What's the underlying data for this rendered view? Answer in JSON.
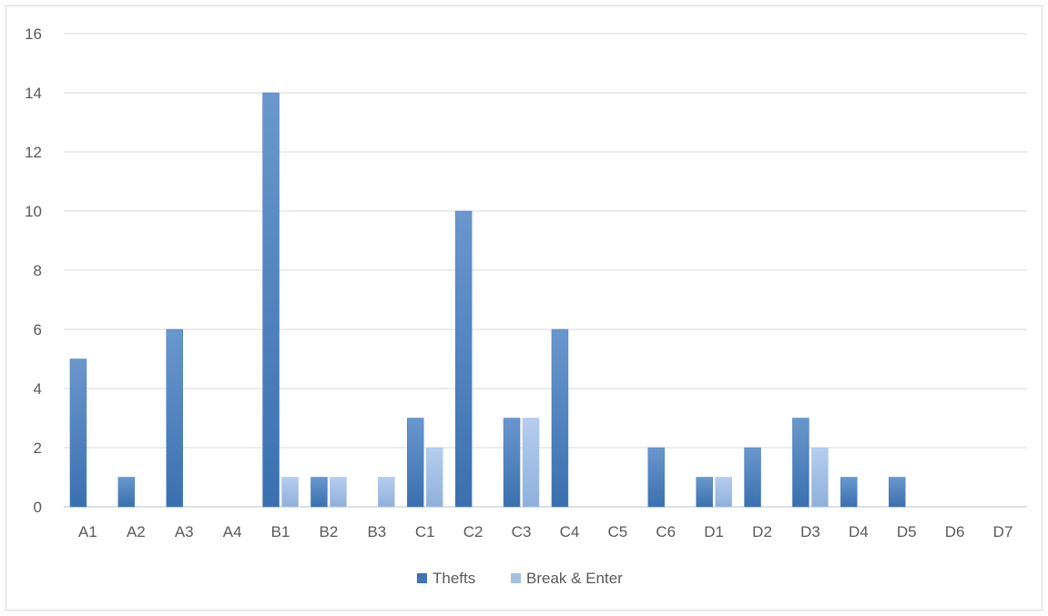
{
  "chart_data": {
    "type": "bar",
    "title": "",
    "xlabel": "",
    "ylabel": "",
    "categories": [
      "A1",
      "A2",
      "A3",
      "A4",
      "B1",
      "B2",
      "B3",
      "C1",
      "C2",
      "C3",
      "C4",
      "C5",
      "C6",
      "D1",
      "D2",
      "D3",
      "D4",
      "D5",
      "D6",
      "D7"
    ],
    "series": [
      {
        "name": "Thefts",
        "color": "#4a7ebb",
        "values": [
          5,
          1,
          6,
          0,
          14,
          1,
          0,
          3,
          10,
          3,
          6,
          0,
          2,
          1,
          2,
          3,
          1,
          1,
          0,
          0
        ]
      },
      {
        "name": "Break & Enter",
        "color": "#a5c0e5",
        "values": [
          0,
          0,
          0,
          0,
          1,
          1,
          1,
          2,
          0,
          3,
          0,
          0,
          0,
          1,
          0,
          2,
          0,
          0,
          0,
          0
        ]
      }
    ],
    "ylim": [
      0,
      16
    ],
    "yticks": [
      0,
      2,
      4,
      6,
      8,
      10,
      12,
      14,
      16
    ],
    "grid": true,
    "legend_position": "bottom"
  }
}
